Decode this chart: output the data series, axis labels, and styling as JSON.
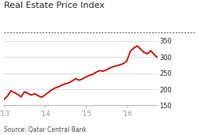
{
  "title": "Real Estate Price Index",
  "source": "Source: Qatar Central Bank",
  "line_color": "#cc0000",
  "bg_color": "#ffffff",
  "title_color": "#222222",
  "source_color": "#444444",
  "dotted_color": "#555555",
  "ylim": [
    150,
    360
  ],
  "yticks": [
    150,
    200,
    250,
    300,
    350
  ],
  "ytick_labels": [
    "150",
    "200",
    "250",
    "300",
    "350"
  ],
  "xtick_positions": [
    0,
    12,
    24,
    36
  ],
  "xtick_labels": [
    "'13",
    "'14",
    "'15",
    "'16"
  ],
  "x": [
    0,
    1,
    2,
    3,
    4,
    5,
    6,
    7,
    8,
    9,
    10,
    11,
    12,
    13,
    14,
    15,
    16,
    17,
    18,
    19,
    20,
    21,
    22,
    23,
    24,
    25,
    26,
    27,
    28,
    29,
    30,
    31,
    32,
    33,
    34,
    35,
    36,
    37,
    38,
    39,
    40,
    41,
    42,
    43,
    44,
    45
  ],
  "y": [
    168,
    178,
    195,
    190,
    184,
    176,
    192,
    187,
    182,
    186,
    180,
    175,
    182,
    190,
    198,
    204,
    208,
    213,
    217,
    220,
    226,
    233,
    228,
    232,
    238,
    243,
    246,
    253,
    258,
    256,
    260,
    266,
    270,
    273,
    276,
    280,
    288,
    318,
    328,
    335,
    325,
    315,
    310,
    320,
    308,
    298
  ]
}
